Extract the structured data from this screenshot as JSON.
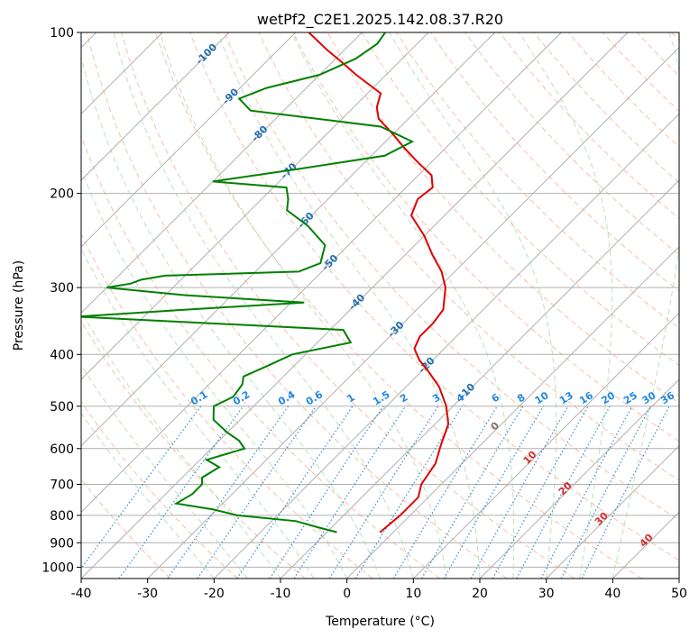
{
  "chart_data": {
    "type": "line",
    "title": "wetPf2_C2E1.2025.142.08.37.R20",
    "xlabel": "Temperature (°C)",
    "ylabel": "Pressure (hPa)",
    "xlim": [
      -40,
      50
    ],
    "ylim": [
      1050,
      100
    ],
    "y_scale": "log",
    "grid": true,
    "x_ticks": [
      "-40",
      "-30",
      "-20",
      "-10",
      "0",
      "10",
      "20",
      "30",
      "40",
      "50"
    ],
    "y_ticks": [
      "100",
      "200",
      "300",
      "400",
      "500",
      "600",
      "700",
      "800",
      "900",
      "1000"
    ],
    "skew_labels": [
      "-100",
      "-90",
      "-80",
      "-70",
      "-60",
      "-50",
      "-40",
      "-30",
      "-20",
      "-10"
    ],
    "zero_label": "0",
    "warm_labels": [
      "10",
      "20",
      "30",
      "40"
    ],
    "mixing_ratio_labels": [
      "0.1",
      "0.2",
      "0.4",
      "0.6",
      "1",
      "1.5",
      "2",
      "3",
      "4",
      "6",
      "8",
      "10",
      "13",
      "16",
      "20",
      "25",
      "30",
      "36"
    ],
    "series": [
      {
        "color": "#e00000",
        "p": [
          860,
          800,
          740,
          700,
          640,
          590,
          540,
          500,
          460,
          430,
          410,
          390,
          370,
          350,
          330,
          300,
          280,
          260,
          240,
          220,
          205,
          195,
          185,
          175,
          165,
          155,
          145,
          138,
          130,
          120,
          113,
          108,
          100
        ],
        "t": [
          -2,
          -1.5,
          -1.5,
          -3,
          -4,
          -6,
          -8,
          -11,
          -15,
          -19,
          -22,
          -24.5,
          -25.5,
          -25.5,
          -26,
          -29,
          -32,
          -36,
          -40,
          -45,
          -46.5,
          -46,
          -48,
          -52,
          -56,
          -60,
          -64.5,
          -66.5,
          -68,
          -74.5,
          -79,
          -82.5,
          -88
        ]
      },
      {
        "color": "#008000",
        "p": [
          860,
          840,
          820,
          800,
          780,
          760,
          730,
          700,
          680,
          650,
          630,
          600,
          580,
          560,
          530,
          500,
          480,
          455,
          440,
          420,
          400,
          380,
          360,
          340,
          330,
          320,
          310,
          300,
          295,
          290,
          285,
          280,
          275,
          270,
          250,
          230,
          215,
          205,
          195,
          190,
          180,
          170,
          160,
          150,
          140,
          133,
          127,
          120,
          112,
          105,
          100
        ],
        "t": [
          -8.5,
          -12.5,
          -16.3,
          -26,
          -30.5,
          -37,
          -36,
          -36,
          -37,
          -36,
          -39,
          -35,
          -37,
          -40,
          -44,
          -46,
          -44.5,
          -45,
          -46,
          -44,
          -42,
          -35,
          -38,
          -80,
          -65,
          -48,
          -67,
          -80,
          -77,
          -76,
          -73,
          -53.5,
          -52.5,
          -51.5,
          -53.5,
          -59,
          -64.5,
          -66,
          -68,
          -80,
          -69,
          -58,
          -56,
          -63,
          -85,
          -88.5,
          -86,
          -80,
          -77,
          -76,
          -76.5
        ]
      }
    ]
  }
}
